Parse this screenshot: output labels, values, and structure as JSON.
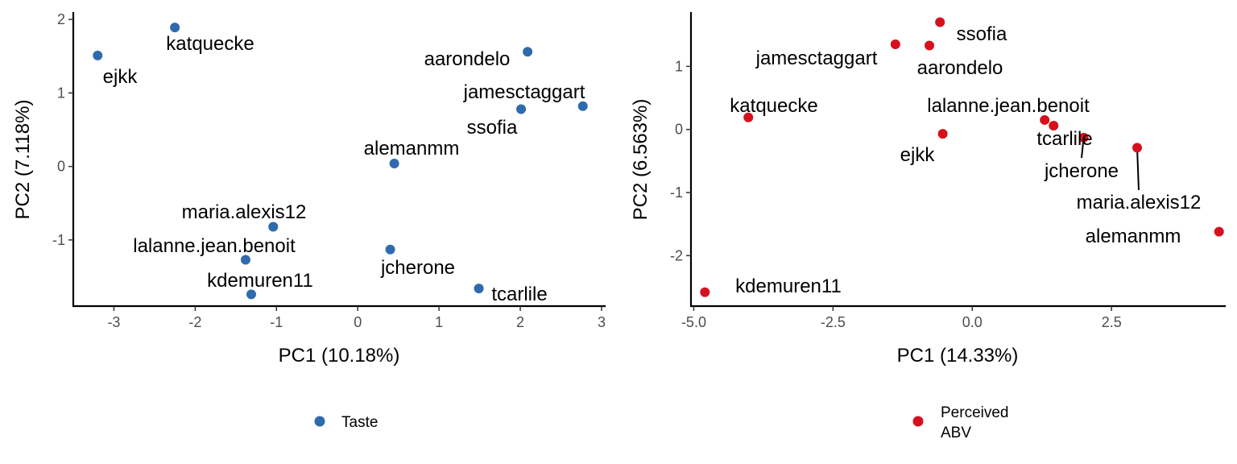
{
  "chart_data": [
    {
      "type": "scatter",
      "xlabel": "PC1 (10.18%)",
      "ylabel": "PC2 (7.118%)",
      "xlim": [
        -3.5,
        3.05
      ],
      "ylim": [
        -1.9,
        2.1
      ],
      "xticks": [
        -3,
        -2,
        -1,
        0,
        1,
        2,
        3
      ],
      "xtick_labels": [
        "-3",
        "-2",
        "-1",
        "0",
        "1",
        "2",
        "3"
      ],
      "yticks": [
        -1,
        0,
        1,
        2
      ],
      "ytick_labels": [
        "-1",
        "0",
        "1",
        "2"
      ],
      "grid": false,
      "legend_position": "bottom",
      "series": [
        {
          "name": "Taste",
          "color": "#2f6aad",
          "points": [
            {
              "label": "katquecke",
              "x": -2.25,
              "y": 1.89
            },
            {
              "label": "ejkk",
              "x": -3.2,
              "y": 1.51
            },
            {
              "label": "aarondelo",
              "x": 2.09,
              "y": 1.56
            },
            {
              "label": "jamesctaggart",
              "x": 2.77,
              "y": 0.82
            },
            {
              "label": "ssofia",
              "x": 2.01,
              "y": 0.78
            },
            {
              "label": "alemanmm",
              "x": 0.45,
              "y": 0.04
            },
            {
              "label": "maria.alexis12",
              "x": -1.04,
              "y": -0.82
            },
            {
              "label": "lalanne.jean.benoit",
              "x": -1.38,
              "y": -1.27
            },
            {
              "label": "jcherone",
              "x": 0.4,
              "y": -1.13
            },
            {
              "label": "kdemuren11",
              "x": -1.31,
              "y": -1.74
            },
            {
              "label": "tcarlile",
              "x": 1.49,
              "y": -1.66
            }
          ]
        }
      ]
    },
    {
      "type": "scatter",
      "xlabel": "PC1 (14.33%)",
      "ylabel": "PC2 (6.563%)",
      "xlim": [
        -5.05,
        4.55
      ],
      "ylim": [
        -2.8,
        1.86
      ],
      "xticks": [
        -5,
        -2.5,
        0,
        2.5
      ],
      "xtick_labels": [
        "-5.0",
        "-2.5",
        "0.0",
        "2.5"
      ],
      "yticks": [
        -2,
        -1,
        0,
        1
      ],
      "ytick_labels": [
        "-2",
        "-1",
        "0",
        "1"
      ],
      "grid": false,
      "legend_position": "bottom",
      "series": [
        {
          "name": "Perceived ABV",
          "color": "#d7101e",
          "points": [
            {
              "label": "ssofia",
              "x": -0.58,
              "y": 1.7
            },
            {
              "label": "jamesctaggart",
              "x": -1.38,
              "y": 1.35
            },
            {
              "label": "aarondelo",
              "x": -0.77,
              "y": 1.33
            },
            {
              "label": "katquecke",
              "x": -4.02,
              "y": 0.19
            },
            {
              "label": "lalanne.jean.benoit",
              "x": 1.3,
              "y": 0.15
            },
            {
              "label": "tcarlile",
              "x": 1.46,
              "y": 0.06
            },
            {
              "label": "ejkk",
              "x": -0.53,
              "y": -0.07
            },
            {
              "label": "jcherone",
              "x": 2.0,
              "y": -0.13
            },
            {
              "label": "maria.alexis12",
              "x": 2.96,
              "y": -0.29
            },
            {
              "label": "alemanmm",
              "x": 4.43,
              "y": -1.62
            },
            {
              "label": "kdemuren11",
              "x": -4.8,
              "y": -2.58
            }
          ]
        }
      ]
    }
  ],
  "legends": [
    {
      "lines": [
        "Taste"
      ],
      "color": "#2f6aad"
    },
    {
      "lines": [
        "Perceived",
        "ABV"
      ],
      "color": "#d7101e"
    }
  ]
}
